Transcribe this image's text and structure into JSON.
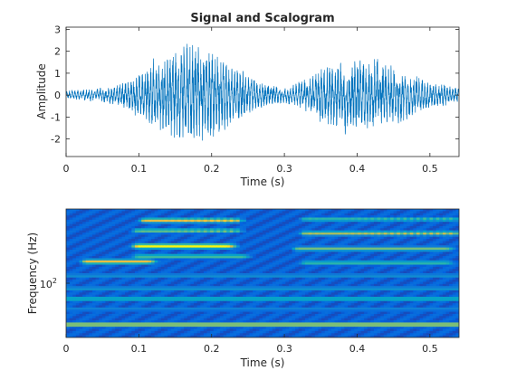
{
  "chart_data": [
    {
      "type": "line",
      "title": "Signal and Scalogram",
      "xlabel": "Time (s)",
      "ylabel": "Amplitude",
      "xlim": [
        0,
        0.54
      ],
      "ylim": [
        -2.8,
        3.1
      ],
      "xticks": [
        0,
        0.1,
        0.2,
        0.3,
        0.4,
        0.5
      ],
      "xtick_labels": [
        "0",
        "0.1",
        "0.2",
        "0.3",
        "0.4",
        "0.5"
      ],
      "yticks": [
        -2,
        -1,
        0,
        1,
        2,
        3
      ],
      "ytick_labels": [
        "-2",
        "-1",
        "0",
        "1",
        "2",
        "3"
      ],
      "color": "#0072BD",
      "envelope": {
        "x": [
          0,
          0.03,
          0.06,
          0.09,
          0.12,
          0.15,
          0.17,
          0.2,
          0.23,
          0.26,
          0.3,
          0.33,
          0.36,
          0.4,
          0.43,
          0.46,
          0.5,
          0.54
        ],
        "amp": [
          0.25,
          0.3,
          0.45,
          0.9,
          1.9,
          2.4,
          2.9,
          2.5,
          1.6,
          0.8,
          0.4,
          0.9,
          1.8,
          2.0,
          1.9,
          1.4,
          0.8,
          0.35
        ]
      },
      "frequency_hz": 260
    },
    {
      "type": "heatmap",
      "title": "",
      "xlabel": "Time (s)",
      "ylabel": "Frequency (Hz)",
      "xlim": [
        0,
        0.54
      ],
      "xticks": [
        0,
        0.1,
        0.2,
        0.3,
        0.4,
        0.5
      ],
      "xtick_labels": [
        "0",
        "0.1",
        "0.2",
        "0.3",
        "0.4",
        "0.5"
      ],
      "ytick_labels": [
        "10",
        "2"
      ],
      "y_scale": "log",
      "colormap": "parula",
      "bands": [
        {
          "yf": 0.09,
          "t0": 0.11,
          "t1": 0.23,
          "peak": 0.9,
          "striated": true
        },
        {
          "yf": 0.08,
          "t0": 0.33,
          "t1": 0.53,
          "peak": 0.55,
          "striated": true
        },
        {
          "yf": 0.17,
          "t0": 0.1,
          "t1": 0.23,
          "peak": 0.65,
          "striated": true
        },
        {
          "yf": 0.19,
          "t0": 0.33,
          "t1": 0.53,
          "peak": 0.75,
          "striated": true
        },
        {
          "yf": 0.29,
          "t0": 0.1,
          "t1": 0.22,
          "peak": 1.0,
          "striated": false
        },
        {
          "yf": 0.31,
          "t0": 0.32,
          "t1": 0.52,
          "peak": 0.6,
          "striated": false
        },
        {
          "yf": 0.37,
          "t0": 0.1,
          "t1": 0.24,
          "peak": 0.55,
          "striated": false
        },
        {
          "yf": 0.41,
          "t0": 0.03,
          "t1": 0.11,
          "peak": 0.85,
          "striated": false
        },
        {
          "yf": 0.42,
          "t0": 0.33,
          "t1": 0.52,
          "peak": 0.5,
          "striated": false
        },
        {
          "yf": 0.52,
          "t0": 0.0,
          "t1": 0.54,
          "peak": 0.3,
          "striated": false
        },
        {
          "yf": 0.62,
          "t0": 0.0,
          "t1": 0.54,
          "peak": 0.32,
          "striated": false
        },
        {
          "yf": 0.7,
          "t0": 0.0,
          "t1": 0.54,
          "peak": 0.45,
          "striated": false
        },
        {
          "yf": 0.78,
          "t0": 0.0,
          "t1": 0.54,
          "peak": 0.25,
          "striated": false
        },
        {
          "yf": 0.9,
          "t0": 0.0,
          "t1": 0.54,
          "peak": 0.75,
          "striated": false
        }
      ]
    }
  ]
}
